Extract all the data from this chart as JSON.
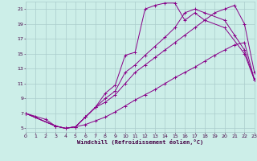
{
  "xlabel": "Windchill (Refroidissement éolien,°C)",
  "bg_color": "#cceee8",
  "grid_color": "#aacccc",
  "line_color": "#880088",
  "xlim": [
    0,
    23
  ],
  "ylim": [
    4.5,
    22.0
  ],
  "xticks": [
    0,
    1,
    2,
    3,
    4,
    5,
    6,
    7,
    8,
    9,
    10,
    11,
    12,
    13,
    14,
    15,
    16,
    17,
    18,
    19,
    20,
    21,
    22,
    23
  ],
  "yticks": [
    5,
    7,
    9,
    11,
    13,
    15,
    17,
    19,
    21
  ],
  "curve1_x": [
    0,
    1,
    2,
    3,
    4,
    5,
    6,
    7,
    8,
    9,
    10,
    11,
    12,
    13,
    14,
    15,
    16,
    17,
    18,
    20,
    22,
    23
  ],
  "curve1_y": [
    7,
    6.6,
    6.2,
    5.3,
    5.0,
    5.2,
    6.5,
    7.8,
    9.7,
    10.8,
    14.8,
    15.2,
    21.0,
    21.5,
    21.8,
    21.8,
    19.5,
    20.5,
    19.5,
    18.5,
    15.0,
    11.5
  ],
  "curve2_x": [
    0,
    3,
    4,
    5,
    6,
    7,
    8,
    9,
    10,
    11,
    12,
    13,
    14,
    15,
    16,
    17,
    18,
    20,
    21,
    22,
    23
  ],
  "curve2_y": [
    7,
    5.3,
    5.0,
    5.2,
    6.5,
    7.8,
    9.0,
    10.0,
    12.5,
    13.5,
    14.8,
    16.0,
    17.2,
    18.5,
    20.5,
    21.0,
    20.5,
    19.5,
    17.5,
    15.5,
    11.5
  ],
  "curve3_x": [
    0,
    3,
    4,
    5,
    6,
    7,
    8,
    9,
    10,
    11,
    12,
    13,
    14,
    15,
    16,
    17,
    18,
    19,
    20,
    21,
    22,
    23
  ],
  "curve3_y": [
    7,
    5.3,
    5.0,
    5.2,
    6.5,
    7.8,
    8.5,
    9.5,
    11.0,
    12.5,
    13.5,
    14.5,
    15.5,
    16.5,
    17.5,
    18.5,
    19.5,
    20.5,
    21.0,
    21.5,
    19.0,
    12.5
  ],
  "curve4_x": [
    0,
    3,
    4,
    5,
    6,
    7,
    8,
    9,
    10,
    11,
    12,
    13,
    14,
    15,
    16,
    17,
    18,
    19,
    20,
    21,
    22,
    23
  ],
  "curve4_y": [
    7,
    5.3,
    5.0,
    5.2,
    5.5,
    6.0,
    6.5,
    7.2,
    8.0,
    8.8,
    9.5,
    10.2,
    11.0,
    11.8,
    12.5,
    13.2,
    14.0,
    14.8,
    15.5,
    16.2,
    16.5,
    11.5
  ]
}
